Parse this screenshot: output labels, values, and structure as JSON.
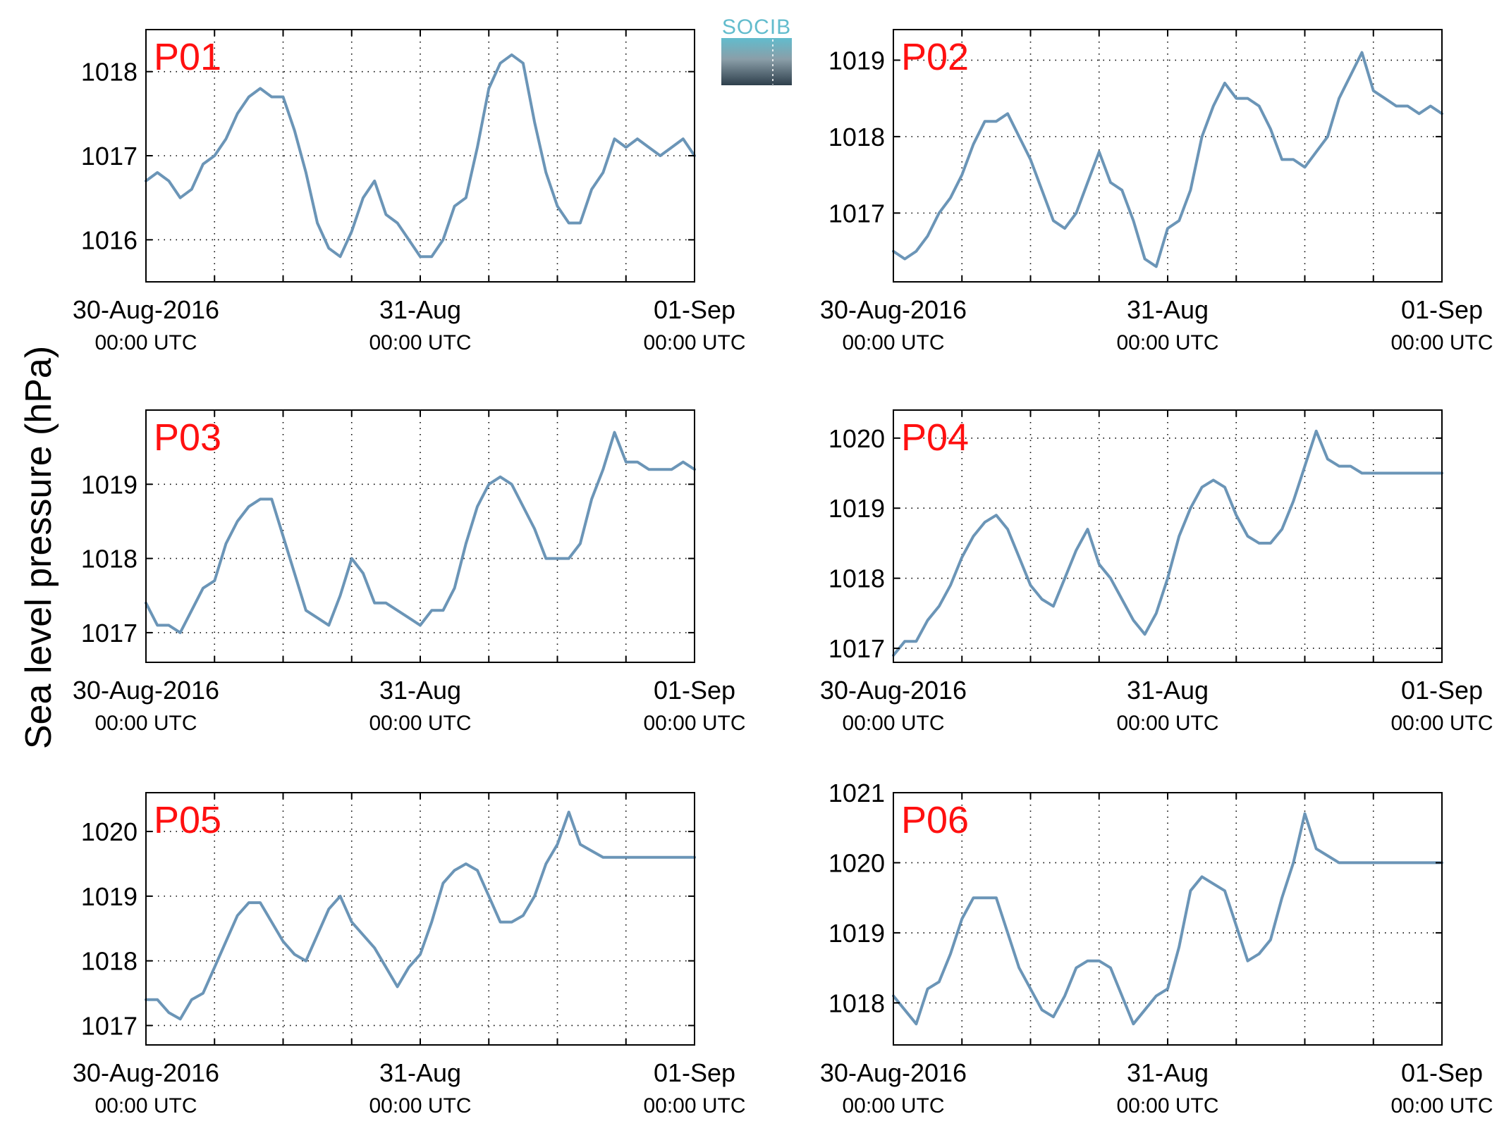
{
  "ylabel": "Sea level pressure (hPa)",
  "logo": {
    "text": "SOCIB",
    "name": "socib-logo"
  },
  "colors": {
    "series": "#6b95b7",
    "panel_label": "#ff1010",
    "logo_top": "#62bccd",
    "logo_bottom": "#2e3f4c"
  },
  "x_ticks": [
    {
      "x": 0,
      "date": "30-Aug-2016",
      "time": "00:00 UTC"
    },
    {
      "x": 24,
      "date": "31-Aug",
      "time": "00:00 UTC"
    },
    {
      "x": 48,
      "date": "01-Sep",
      "time": "00:00 UTC"
    }
  ],
  "chart_data": [
    {
      "type": "line",
      "label": "P01",
      "xlim": [
        0,
        48
      ],
      "ylim": [
        1015.5,
        1018.5
      ],
      "yticks": [
        1016,
        1017,
        1018
      ],
      "grid": true,
      "series": [
        {
          "x": [
            0,
            1,
            2,
            3,
            4,
            5,
            6,
            7,
            8,
            9,
            10,
            11,
            12,
            13,
            14,
            15,
            16,
            17,
            18,
            19,
            20,
            21,
            22,
            23,
            24,
            25,
            26,
            27,
            28,
            29,
            30,
            31,
            32,
            33,
            34,
            35,
            36,
            37,
            38,
            39,
            40,
            41,
            42,
            43,
            44,
            45,
            46,
            47,
            48
          ],
          "y": [
            1016.7,
            1016.8,
            1016.7,
            1016.5,
            1016.6,
            1016.9,
            1017.0,
            1017.2,
            1017.5,
            1017.7,
            1017.8,
            1017.7,
            1017.7,
            1017.3,
            1016.8,
            1016.2,
            1015.9,
            1015.8,
            1016.1,
            1016.5,
            1016.7,
            1016.3,
            1016.2,
            1016.0,
            1015.8,
            1015.8,
            1016.0,
            1016.4,
            1016.5,
            1017.1,
            1017.8,
            1018.1,
            1018.2,
            1018.1,
            1017.4,
            1016.8,
            1016.4,
            1016.2,
            1016.2,
            1016.6,
            1016.8,
            1017.2,
            1017.1,
            1017.2,
            1017.1,
            1017.0,
            1017.1,
            1017.2,
            1017.0
          ]
        }
      ]
    },
    {
      "type": "line",
      "label": "P02",
      "xlim": [
        0,
        48
      ],
      "ylim": [
        1016.1,
        1019.4
      ],
      "yticks": [
        1017,
        1018,
        1019
      ],
      "grid": true,
      "series": [
        {
          "x": [
            0,
            1,
            2,
            3,
            4,
            5,
            6,
            7,
            8,
            9,
            10,
            11,
            12,
            13,
            14,
            15,
            16,
            17,
            18,
            19,
            20,
            21,
            22,
            23,
            24,
            25,
            26,
            27,
            28,
            29,
            30,
            31,
            32,
            33,
            34,
            35,
            36,
            37,
            38,
            39,
            40,
            41,
            42,
            43,
            44,
            45,
            46,
            47,
            48
          ],
          "y": [
            1016.5,
            1016.4,
            1016.5,
            1016.7,
            1017.0,
            1017.2,
            1017.5,
            1017.9,
            1018.2,
            1018.2,
            1018.3,
            1018.0,
            1017.7,
            1017.3,
            1016.9,
            1016.8,
            1017.0,
            1017.4,
            1017.8,
            1017.4,
            1017.3,
            1016.9,
            1016.4,
            1016.3,
            1016.8,
            1016.9,
            1017.3,
            1018.0,
            1018.4,
            1018.7,
            1018.5,
            1018.5,
            1018.4,
            1018.1,
            1017.7,
            1017.7,
            1017.6,
            1017.8,
            1018.0,
            1018.5,
            1018.8,
            1019.1,
            1018.6,
            1018.5,
            1018.4,
            1018.4,
            1018.3,
            1018.4,
            1018.3
          ]
        }
      ]
    },
    {
      "type": "line",
      "label": "P03",
      "xlim": [
        0,
        48
      ],
      "ylim": [
        1016.6,
        1020.0
      ],
      "yticks": [
        1017,
        1018,
        1019
      ],
      "grid": true,
      "series": [
        {
          "x": [
            0,
            1,
            2,
            3,
            4,
            5,
            6,
            7,
            8,
            9,
            10,
            11,
            12,
            13,
            14,
            15,
            16,
            17,
            18,
            19,
            20,
            21,
            22,
            23,
            24,
            25,
            26,
            27,
            28,
            29,
            30,
            31,
            32,
            33,
            34,
            35,
            36,
            37,
            38,
            39,
            40,
            41,
            42,
            43,
            44,
            45,
            46,
            47,
            48
          ],
          "y": [
            1017.4,
            1017.1,
            1017.1,
            1017.0,
            1017.3,
            1017.6,
            1017.7,
            1018.2,
            1018.5,
            1018.7,
            1018.8,
            1018.8,
            1018.3,
            1017.8,
            1017.3,
            1017.2,
            1017.1,
            1017.5,
            1018.0,
            1017.8,
            1017.4,
            1017.4,
            1017.3,
            1017.2,
            1017.1,
            1017.3,
            1017.3,
            1017.6,
            1018.2,
            1018.7,
            1019.0,
            1019.1,
            1019.0,
            1018.7,
            1018.4,
            1018.0,
            1018.0,
            1018.0,
            1018.2,
            1018.8,
            1019.2,
            1019.7,
            1019.3,
            1019.3,
            1019.2,
            1019.2,
            1019.2,
            1019.3,
            1019.2
          ]
        }
      ]
    },
    {
      "type": "line",
      "label": "P04",
      "xlim": [
        0,
        48
      ],
      "ylim": [
        1016.8,
        1020.4
      ],
      "yticks": [
        1017,
        1018,
        1019,
        1020
      ],
      "grid": true,
      "series": [
        {
          "x": [
            0,
            1,
            2,
            3,
            4,
            5,
            6,
            7,
            8,
            9,
            10,
            11,
            12,
            13,
            14,
            15,
            16,
            17,
            18,
            19,
            20,
            21,
            22,
            23,
            24,
            25,
            26,
            27,
            28,
            29,
            30,
            31,
            32,
            33,
            34,
            35,
            36,
            37,
            38,
            39,
            40,
            41,
            42,
            43,
            44,
            45,
            46,
            47,
            48
          ],
          "y": [
            1016.9,
            1017.1,
            1017.1,
            1017.4,
            1017.6,
            1017.9,
            1018.3,
            1018.6,
            1018.8,
            1018.9,
            1018.7,
            1018.3,
            1017.9,
            1017.7,
            1017.6,
            1018.0,
            1018.4,
            1018.7,
            1018.2,
            1018.0,
            1017.7,
            1017.4,
            1017.2,
            1017.5,
            1018.0,
            1018.6,
            1019.0,
            1019.3,
            1019.4,
            1019.3,
            1018.9,
            1018.6,
            1018.5,
            1018.5,
            1018.7,
            1019.1,
            1019.6,
            1020.1,
            1019.7,
            1019.6,
            1019.6,
            1019.5,
            1019.5,
            1019.5,
            1019.5,
            1019.5,
            1019.5,
            1019.5,
            1019.5
          ]
        }
      ]
    },
    {
      "type": "line",
      "label": "P05",
      "xlim": [
        0,
        48
      ],
      "ylim": [
        1016.7,
        1020.6
      ],
      "yticks": [
        1017,
        1018,
        1019,
        1020
      ],
      "grid": true,
      "series": [
        {
          "x": [
            0,
            1,
            2,
            3,
            4,
            5,
            6,
            7,
            8,
            9,
            10,
            11,
            12,
            13,
            14,
            15,
            16,
            17,
            18,
            19,
            20,
            21,
            22,
            23,
            24,
            25,
            26,
            27,
            28,
            29,
            30,
            31,
            32,
            33,
            34,
            35,
            36,
            37,
            38,
            39,
            40,
            41,
            42,
            43,
            44,
            45,
            46,
            47,
            48
          ],
          "y": [
            1017.4,
            1017.4,
            1017.2,
            1017.1,
            1017.4,
            1017.5,
            1017.9,
            1018.3,
            1018.7,
            1018.9,
            1018.9,
            1018.6,
            1018.3,
            1018.1,
            1018.0,
            1018.4,
            1018.8,
            1019.0,
            1018.6,
            1018.4,
            1018.2,
            1017.9,
            1017.6,
            1017.9,
            1018.1,
            1018.6,
            1019.2,
            1019.4,
            1019.5,
            1019.4,
            1019.0,
            1018.6,
            1018.6,
            1018.7,
            1019.0,
            1019.5,
            1019.8,
            1020.3,
            1019.8,
            1019.7,
            1019.6,
            1019.6,
            1019.6,
            1019.6,
            1019.6,
            1019.6,
            1019.6,
            1019.6,
            1019.6
          ]
        }
      ]
    },
    {
      "type": "line",
      "label": "P06",
      "xlim": [
        0,
        48
      ],
      "ylim": [
        1017.4,
        1021.0
      ],
      "yticks": [
        1018,
        1019,
        1020,
        1021
      ],
      "grid": true,
      "series": [
        {
          "x": [
            0,
            1,
            2,
            3,
            4,
            5,
            6,
            7,
            8,
            9,
            10,
            11,
            12,
            13,
            14,
            15,
            16,
            17,
            18,
            19,
            20,
            21,
            22,
            23,
            24,
            25,
            26,
            27,
            28,
            29,
            30,
            31,
            32,
            33,
            34,
            35,
            36,
            37,
            38,
            39,
            40,
            41,
            42,
            43,
            44,
            45,
            46,
            47,
            48
          ],
          "y": [
            1018.1,
            1017.9,
            1017.7,
            1018.2,
            1018.3,
            1018.7,
            1019.2,
            1019.5,
            1019.5,
            1019.5,
            1019.0,
            1018.5,
            1018.2,
            1017.9,
            1017.8,
            1018.1,
            1018.5,
            1018.6,
            1018.6,
            1018.5,
            1018.1,
            1017.7,
            1017.9,
            1018.1,
            1018.2,
            1018.8,
            1019.6,
            1019.8,
            1019.7,
            1019.6,
            1019.1,
            1018.6,
            1018.7,
            1018.9,
            1019.5,
            1020.0,
            1020.7,
            1020.2,
            1020.1,
            1020.0,
            1020.0,
            1020.0,
            1020.0,
            1020.0,
            1020.0,
            1020.0,
            1020.0,
            1020.0,
            1020.0
          ]
        }
      ]
    }
  ]
}
